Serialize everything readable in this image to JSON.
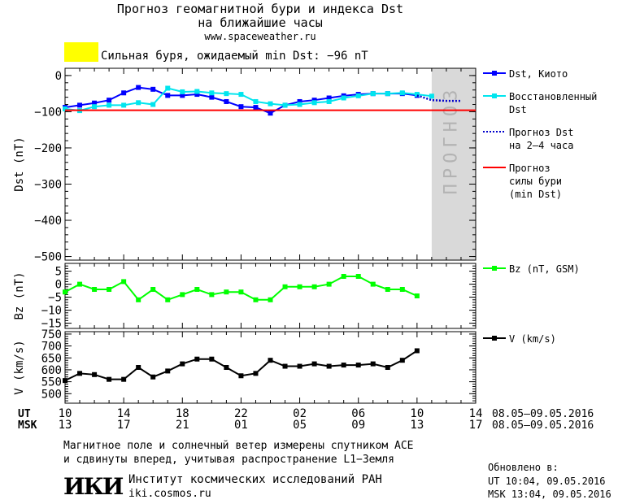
{
  "header": {
    "title_line1": "Прогноз геомагнитной бури и индекса Dst",
    "title_line2": "на ближайшие часы",
    "url": "www.spaceweather.ru",
    "storm_text": "Сильная буря, ожидаемый min Dst: −96 nT",
    "storm_color": "#ffff00"
  },
  "chart_data": [
    {
      "type": "line",
      "ylabel": "Dst (nT)",
      "ylim": [
        -510,
        20
      ],
      "yticks": [
        0,
        -100,
        -200,
        -300,
        -400,
        -500
      ],
      "forecast_band_label": "ПРОГНОЗ",
      "series": [
        {
          "name": "Dst, Киото",
          "color": "#0000ff",
          "marker": "square",
          "x": [
            10,
            11,
            12,
            13,
            14,
            15,
            16,
            17,
            18,
            19,
            20,
            21,
            22,
            23,
            24,
            25,
            26,
            27,
            28,
            29,
            30,
            31,
            32,
            33,
            34
          ],
          "y": [
            -88,
            -82,
            -76,
            -68,
            -48,
            -33,
            -38,
            -55,
            -55,
            -52,
            -60,
            -72,
            -86,
            -88,
            -104,
            -82,
            -72,
            -68,
            -62,
            -56,
            -52,
            -50,
            -50,
            -50,
            -55
          ]
        },
        {
          "name": "Восстановленный Dst",
          "color": "#00e5ee",
          "marker": "square",
          "x": [
            10,
            11,
            12,
            13,
            14,
            15,
            16,
            17,
            18,
            19,
            20,
            21,
            22,
            23,
            24,
            25,
            26,
            27,
            28,
            29,
            30,
            31,
            32,
            33,
            34,
            35
          ],
          "y": [
            -92,
            -97,
            -86,
            -82,
            -82,
            -75,
            -80,
            -35,
            -45,
            -44,
            -48,
            -50,
            -52,
            -72,
            -78,
            -82,
            -80,
            -75,
            -72,
            -62,
            -56,
            -50,
            -50,
            -48,
            -52,
            -57
          ]
        },
        {
          "name": "Прогноз Dst на 2–4 часа",
          "color": "#0000cc",
          "style": "dotted",
          "x": [
            34,
            35,
            36,
            37
          ],
          "y": [
            -55,
            -68,
            -70,
            -70
          ]
        },
        {
          "name": "Прогноз силы бури (min Dst)",
          "color": "#ff0000",
          "style": "solid",
          "x": [
            10,
            38
          ],
          "y": [
            -96,
            -96
          ]
        }
      ]
    },
    {
      "type": "line",
      "ylabel": "Bz (nT)",
      "ylim": [
        -17,
        8
      ],
      "yticks": [
        5,
        0,
        -5,
        -10,
        -15
      ],
      "series": [
        {
          "name": "Bz (nT, GSM)",
          "color": "#00ff00",
          "marker": "square",
          "x": [
            10,
            11,
            12,
            13,
            14,
            15,
            16,
            17,
            18,
            19,
            20,
            21,
            22,
            23,
            24,
            25,
            26,
            27,
            28,
            29,
            30,
            31,
            32,
            33,
            34
          ],
          "y": [
            -3,
            0,
            -2,
            -2,
            1,
            -6,
            -2,
            -6,
            -4,
            -2,
            -4,
            -3,
            -3,
            -6,
            -6,
            -1,
            -1,
            -1,
            0,
            3,
            3,
            0,
            -2,
            -2,
            -4.5
          ]
        }
      ]
    },
    {
      "type": "line",
      "ylabel": "V (km/s)",
      "ylim": [
        460,
        760
      ],
      "yticks": [
        750,
        700,
        650,
        600,
        550,
        500
      ],
      "series": [
        {
          "name": "V (km/s)",
          "color": "#000000",
          "marker": "square",
          "x": [
            10,
            11,
            12,
            13,
            14,
            15,
            16,
            17,
            18,
            19,
            20,
            21,
            22,
            23,
            24,
            25,
            26,
            27,
            28,
            29,
            30,
            31,
            32,
            33,
            34
          ],
          "y": [
            555,
            585,
            580,
            560,
            560,
            610,
            570,
            595,
            625,
            645,
            645,
            610,
            575,
            585,
            640,
            615,
            615,
            625,
            615,
            620,
            620,
            625,
            610,
            640,
            680
          ]
        }
      ]
    }
  ],
  "xaxis": {
    "ut_label": "UT",
    "msk_label": "MSK",
    "ut_ticks": [
      "10",
      "14",
      "18",
      "22",
      "02",
      "06",
      "10",
      "14"
    ],
    "msk_ticks": [
      "13",
      "17",
      "21",
      "01",
      "05",
      "09",
      "13",
      "17"
    ],
    "date_range_ut": "08.05–09.05.2016",
    "date_range_msk": "08.05–09.05.2016",
    "xlim": [
      10,
      38
    ]
  },
  "footer": {
    "note_line1": "Магнитное поле и солнечный ветер измерены спутником ACE",
    "note_line2": "и сдвинуты вперед, учитывая распространение L1−Земля",
    "updated_label": "Обновлено в:",
    "updated_ut": "UT   10:04, 09.05.2016",
    "updated_msk": "MSK 13:04, 09.05.2016",
    "logo_text": "ИКИ",
    "institute": "Институт космических исследований РАН",
    "institute_url": "iki.cosmos.ru"
  }
}
